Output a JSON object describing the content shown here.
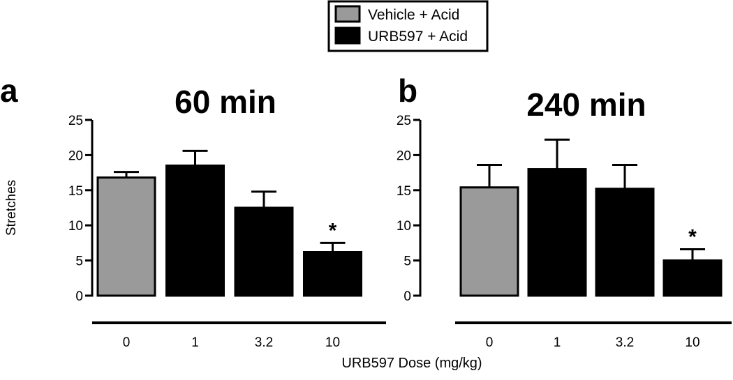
{
  "legend": {
    "items": [
      {
        "label": "Vehicle + Acid",
        "color": "#9a9a9a"
      },
      {
        "label": "URB597 + Acid",
        "color": "#000000"
      }
    ]
  },
  "shared": {
    "xlabel": "URB597 Dose (mg/kg)",
    "ylabel": "Stretches"
  },
  "colors": {
    "vehicle": "#9a9a9a",
    "drug": "#000000",
    "axis": "#000000"
  },
  "chart_data": [
    {
      "type": "bar",
      "panel_label": "a",
      "title": "60 min",
      "categories": [
        "0",
        "1",
        "3.2",
        "10"
      ],
      "values": [
        16.8,
        18.5,
        12.5,
        6.2
      ],
      "errors": [
        0.8,
        2.1,
        2.3,
        1.3
      ],
      "groups": [
        "Vehicle + Acid",
        "URB597 + Acid",
        "URB597 + Acid",
        "URB597 + Acid"
      ],
      "significance": [
        "",
        "",
        "",
        "*"
      ],
      "ylabel": "Stretches",
      "xlabel": "URB597 Dose (mg/kg)",
      "ylim": [
        0,
        25
      ],
      "yticks": [
        "0",
        "5",
        "10",
        "15",
        "20",
        "25"
      ],
      "grid": false,
      "legend": "top-center"
    },
    {
      "type": "bar",
      "panel_label": "b",
      "title": "240 min",
      "categories": [
        "0",
        "1",
        "3.2",
        "10"
      ],
      "values": [
        15.4,
        18.0,
        15.2,
        5.0
      ],
      "errors": [
        3.2,
        4.2,
        3.4,
        1.6
      ],
      "groups": [
        "Vehicle + Acid",
        "URB597 + Acid",
        "URB597 + Acid",
        "URB597 + Acid"
      ],
      "significance": [
        "",
        "",
        "",
        "*"
      ],
      "ylabel": "",
      "xlabel": "URB597 Dose (mg/kg)",
      "ylim": [
        0,
        25
      ],
      "yticks": [
        "0",
        "5",
        "10",
        "15",
        "20",
        "25"
      ],
      "grid": false,
      "legend": "top-center"
    }
  ]
}
